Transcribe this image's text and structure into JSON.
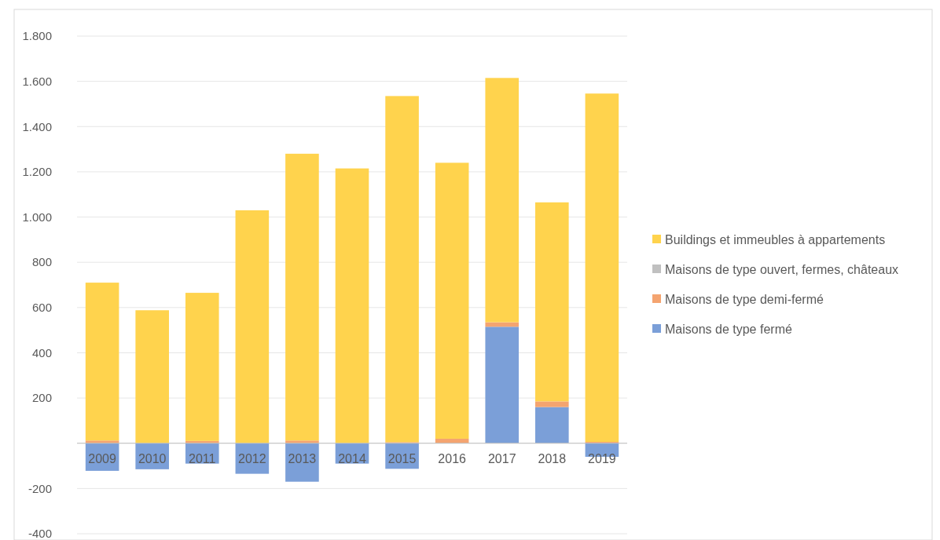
{
  "chart_data": {
    "type": "bar",
    "stacked": true,
    "categories": [
      "2009",
      "2010",
      "2011",
      "2012",
      "2013",
      "2014",
      "2015",
      "2016",
      "2017",
      "2018",
      "2019"
    ],
    "series": [
      {
        "name": "Maisons de type fermé",
        "color": "#7b9fd8",
        "values": [
          -122,
          -115,
          -90,
          -135,
          -170,
          -90,
          -113,
          0,
          515,
          160,
          -60
        ]
      },
      {
        "name": "Maisons de type demi-fermé",
        "color": "#f4a470",
        "values": [
          12,
          null,
          10,
          null,
          12,
          null,
          5,
          20,
          20,
          25,
          6
        ]
      },
      {
        "name": "Maisons de type ouvert, fermes, châteaux",
        "color": "#c0c0c0",
        "values": [
          0,
          0,
          0,
          0,
          0,
          0,
          0,
          0,
          null,
          0,
          0
        ]
      },
      {
        "name": "Buildings et immeubles à appartements",
        "color": "#ffd34d",
        "values": [
          698,
          588,
          655,
          1030,
          1268,
          1215,
          1530,
          1220,
          1080,
          880,
          1540
        ]
      }
    ],
    "ylim": [
      -400,
      1800
    ],
    "yticks": [
      {
        "value": -400,
        "label": "-400"
      },
      {
        "value": -200,
        "label": "-200"
      },
      {
        "value": 0,
        "label": null
      },
      {
        "value": 200,
        "label": "200"
      },
      {
        "value": 400,
        "label": "400"
      },
      {
        "value": 600,
        "label": "600"
      },
      {
        "value": 800,
        "label": "800"
      },
      {
        "value": 1000,
        "label": "1.000"
      },
      {
        "value": 1200,
        "label": "1.200"
      },
      {
        "value": 1400,
        "label": "1.400"
      },
      {
        "value": 1600,
        "label": "1.600"
      },
      {
        "value": 1800,
        "label": "1.800"
      }
    ],
    "grid": "y",
    "legend": "right"
  }
}
